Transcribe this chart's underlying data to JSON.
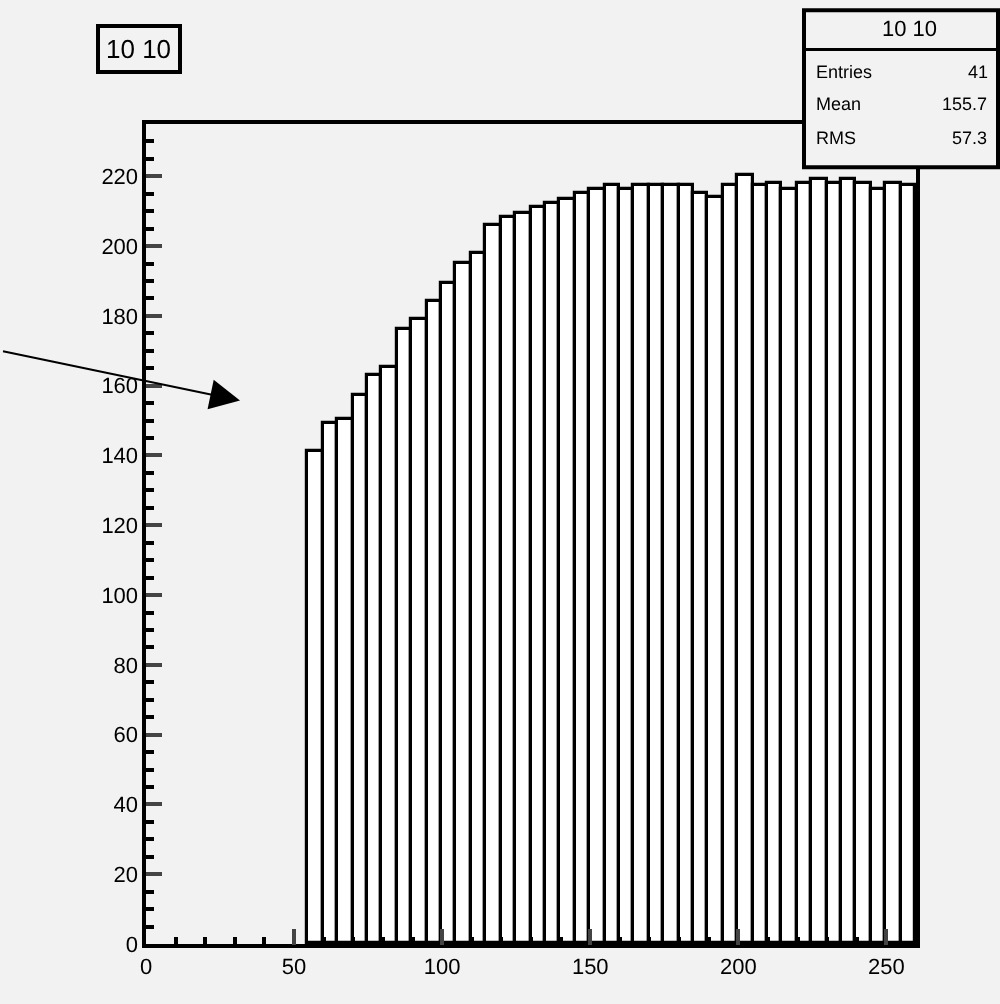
{
  "chart_data": {
    "type": "histogram",
    "title": "10 10",
    "bins": [
      55,
      60,
      65,
      70,
      75,
      80,
      85,
      90,
      95,
      100,
      105,
      110,
      115,
      120,
      125,
      130,
      135,
      140,
      145,
      150,
      155,
      160,
      165,
      170,
      175,
      180,
      185,
      190,
      195,
      200,
      205,
      210,
      215,
      220,
      225,
      230,
      235,
      240,
      245,
      250,
      255,
      260
    ],
    "values": [
      141,
      149,
      150,
      157,
      163,
      165,
      176,
      179,
      184,
      189,
      195,
      198,
      206,
      208,
      209,
      211,
      212,
      213,
      215,
      216,
      217,
      216,
      217,
      217,
      217,
      217,
      215,
      214,
      217,
      220,
      217,
      218,
      216,
      218,
      219,
      218,
      219,
      218,
      216,
      218,
      217
    ],
    "color": "#000000",
    "xlim": [
      0,
      260
    ],
    "xticks": [
      0,
      50,
      100,
      150,
      200,
      250
    ],
    "ylim": [
      0,
      235
    ],
    "yticks": [
      0,
      20,
      40,
      60,
      80,
      100,
      120,
      140,
      160,
      180,
      200,
      220
    ],
    "annotations": [
      "10 10",
      "Entries 41",
      "Mean 155.7",
      "RMS 57.3"
    ],
    "grid": false
  }
}
